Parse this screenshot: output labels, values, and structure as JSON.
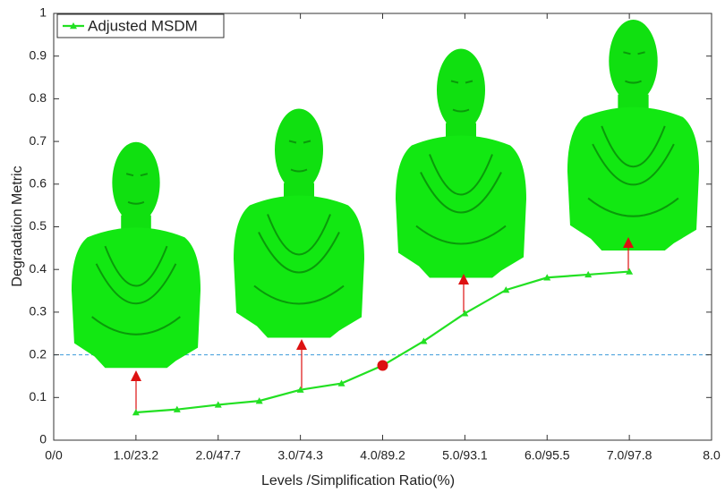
{
  "chart_data": {
    "type": "line",
    "x_label": "Levels /Simplification Ratio(%)",
    "y_label": "Degradation Metric",
    "series": [
      {
        "name": "Adjusted MSDM",
        "color": "#22e022",
        "x": [
          1,
          1.5,
          2,
          2.5,
          3,
          3.5,
          4,
          4.5,
          5,
          5.5,
          6,
          6.5,
          7
        ],
        "values": [
          0.065,
          0.072,
          0.083,
          0.092,
          0.118,
          0.133,
          0.175,
          0.232,
          0.297,
          0.352,
          0.381,
          0.388,
          0.395
        ]
      }
    ],
    "highlight": {
      "x": 4,
      "y": 0.175,
      "color": "#dd1111"
    },
    "reference_line": 0.2,
    "xlim": [
      0,
      8
    ],
    "xticks": [
      {
        "value": 0,
        "label": "0/0"
      },
      {
        "value": 1,
        "label": "1.0/23.2"
      },
      {
        "value": 2,
        "label": "2.0/47.7"
      },
      {
        "value": 3,
        "label": "3.0/74.3"
      },
      {
        "value": 4,
        "label": "4.0/89.2"
      },
      {
        "value": 5,
        "label": "5.0/93.1"
      },
      {
        "value": 6,
        "label": "6.0/95.5"
      },
      {
        "value": 7,
        "label": "7.0/97.8"
      },
      {
        "value": 8,
        "label": "8.0"
      }
    ],
    "ylim": [
      0,
      1
    ],
    "yticks": [
      0,
      0.1,
      0.2,
      0.3,
      0.4,
      0.5,
      0.6,
      0.7,
      0.8,
      0.9,
      1
    ],
    "legend": "top-left"
  }
}
